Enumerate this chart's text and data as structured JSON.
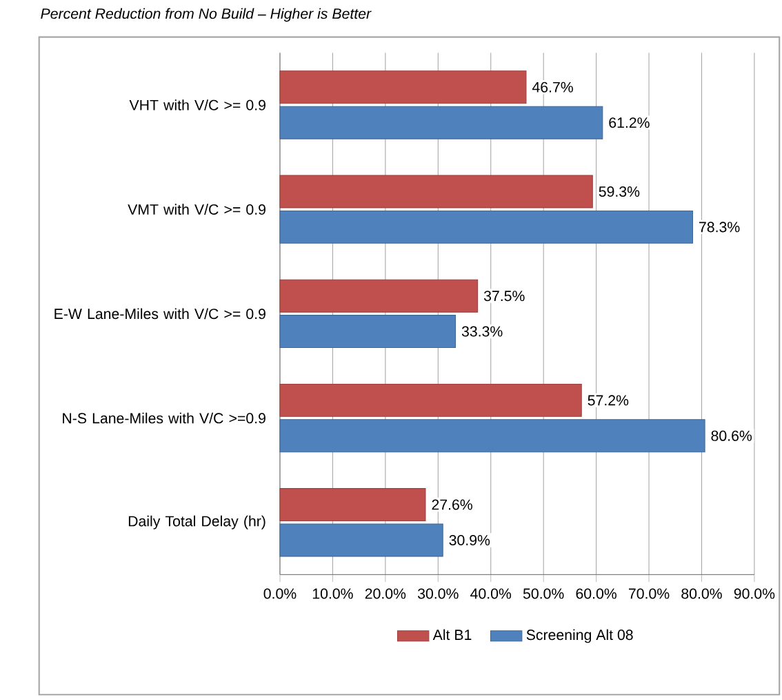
{
  "chart_data": {
    "type": "bar",
    "orientation": "horizontal",
    "title": "Percent Reduction from No Build – Higher is Better",
    "categories": [
      "VHT with V/C >= 0.9",
      "VMT with V/C >= 0.9",
      "E-W Lane-Miles with V/C >= 0.9",
      "N-S Lane-Miles with V/C >=0.9",
      "Daily Total Delay (hr)"
    ],
    "series": [
      {
        "name": "Alt B1",
        "color": "#c0504d",
        "values": [
          46.7,
          59.3,
          37.5,
          57.2,
          27.6
        ],
        "value_labels": [
          "46.7%",
          "59.3%",
          "37.5%",
          "57.2%",
          "27.6%"
        ]
      },
      {
        "name": "Screening  Alt 08",
        "color": "#4f81bd",
        "values": [
          61.2,
          78.3,
          33.3,
          80.6,
          30.9
        ],
        "value_labels": [
          "61.2%",
          "78.3%",
          "33.3%",
          "80.6%",
          "30.9%"
        ]
      }
    ],
    "xlim": [
      0,
      90
    ],
    "xticks": [
      {
        "value": 0,
        "label": "0.0%"
      },
      {
        "value": 10,
        "label": "10.0%"
      },
      {
        "value": 20,
        "label": "20.0%"
      },
      {
        "value": 30,
        "label": "30.0%"
      },
      {
        "value": 40,
        "label": "40.0%"
      },
      {
        "value": 50,
        "label": "50.0%"
      },
      {
        "value": 60,
        "label": "60.0%"
      },
      {
        "value": 70,
        "label": "70.0%"
      },
      {
        "value": 80,
        "label": "80.0%"
      },
      {
        "value": 90,
        "label": "90.0%"
      }
    ],
    "grid": "x",
    "legend": "bottom"
  }
}
